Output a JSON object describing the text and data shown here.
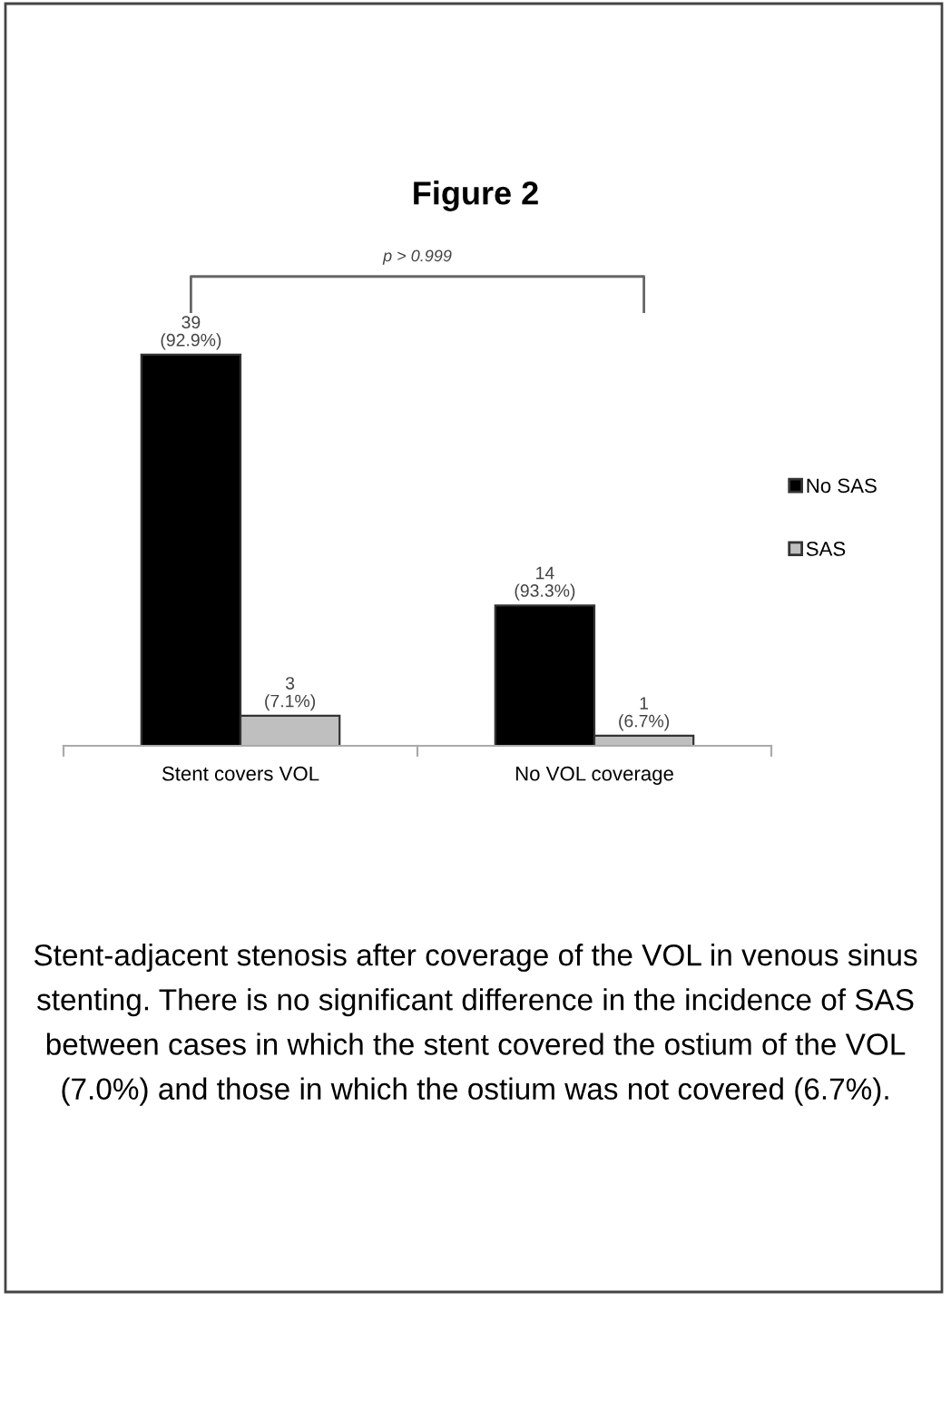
{
  "chart_data": {
    "type": "bar",
    "title": "Figure 2",
    "categories": [
      "Stent covers VOL",
      "No VOL coverage"
    ],
    "series": [
      {
        "name": "No SAS",
        "color": "#000000",
        "values": [
          39,
          14
        ],
        "value_labels": [
          "39\n(92.9%)",
          "14\n(93.3%)"
        ]
      },
      {
        "name": "SAS",
        "color": "#bfbfbf",
        "values": [
          3,
          1
        ],
        "value_labels": [
          "3\n(7.1%)",
          "1\n(6.7%)"
        ]
      }
    ],
    "legend": "right",
    "grid": false,
    "annotations": [
      "p > 0.999",
      "Stent-adjacent stenosis after coverage of the VOL in venous sinus stenting. There is no significant difference in the incidence of SAS between cases in which the stent covered the ostium of the VOL (7.0%) and those in which the ostium was not covered (6.7%)."
    ]
  }
}
